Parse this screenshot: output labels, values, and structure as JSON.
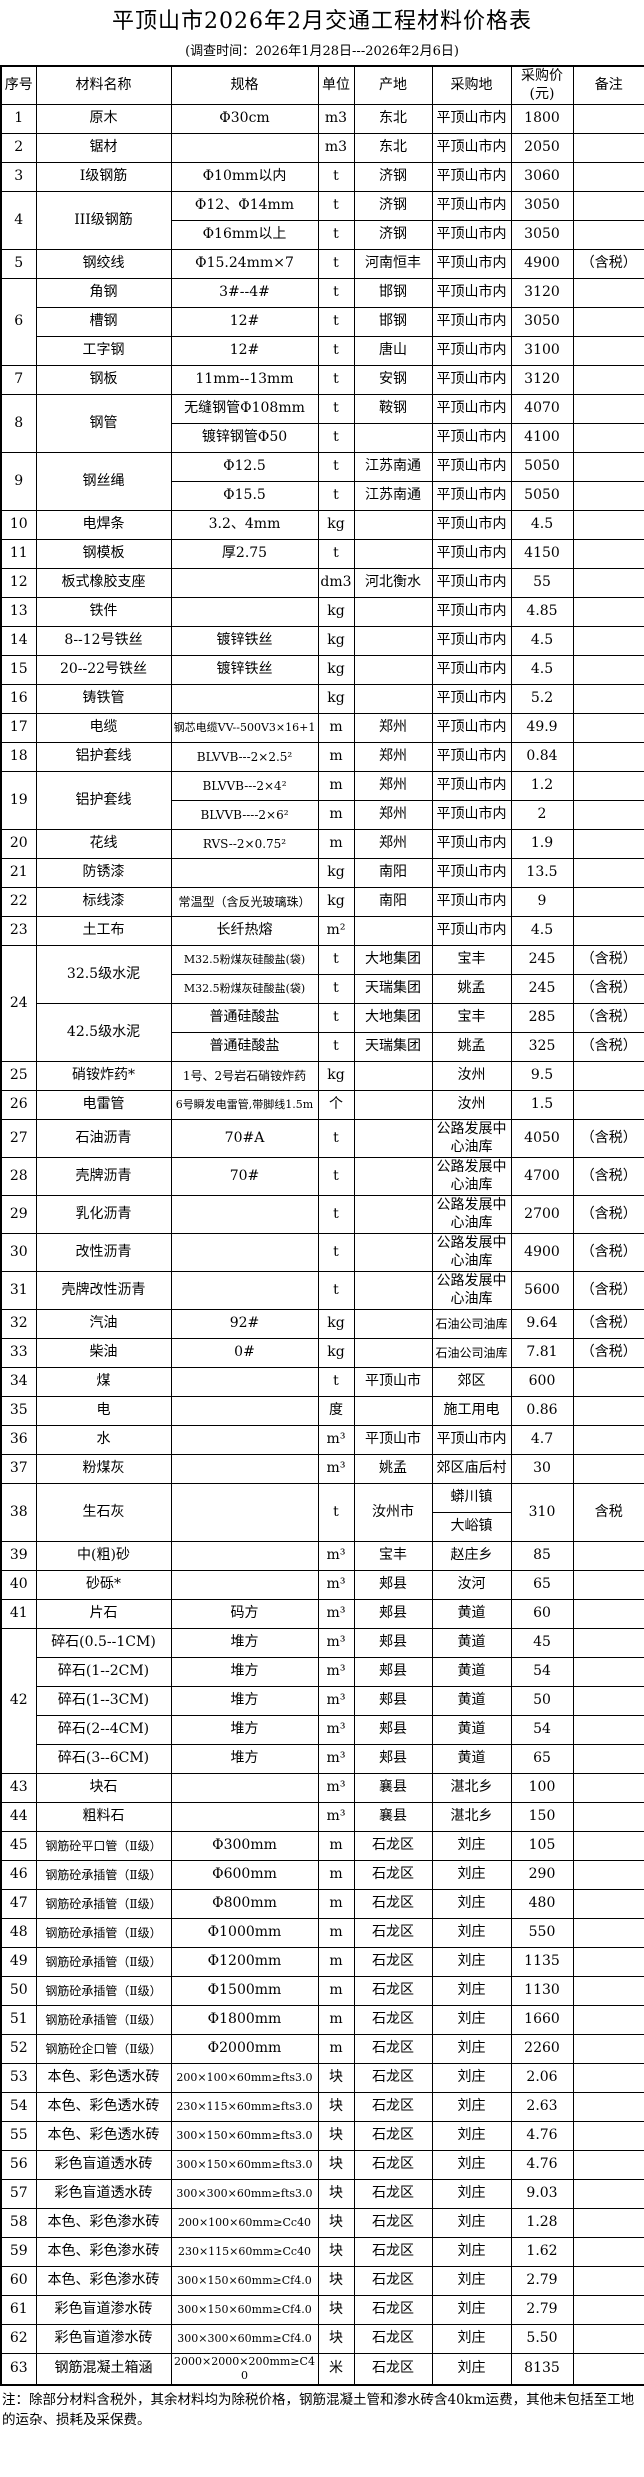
{
  "title": "平顶山市2026年2月交通工程材料价格表",
  "subtitle": "(调查时间：2026年1月28日---2026年2月6日)",
  "note": "注：除部分材料含税外，其余材料均为除税价格，钢筋混凝土管和渗水砖含40km运费，其他未包括至工地的运杂、损耗及采保费。",
  "table": {
    "columns": [
      "序号",
      "材料名称",
      "规格",
      "单位",
      "产地",
      "采购地",
      "采购价(元)",
      "备注"
    ],
    "rows": [
      [
        "1",
        "原木",
        "Φ30cm",
        "m3",
        "东北",
        "平顶山市内",
        "1800",
        ""
      ],
      [
        "2",
        "锯材",
        "",
        "m3",
        "东北",
        "平顶山市内",
        "2050",
        ""
      ],
      [
        "3",
        "I级钢筋",
        "Φ10mm以内",
        "t",
        "济钢",
        "平顶山市内",
        "3060",
        ""
      ],
      [
        {
          "t": "4",
          "rs": 2
        },
        {
          "t": "III级钢筋",
          "rs": 2
        },
        "Φ12、Φ14mm",
        "t",
        "济钢",
        "平顶山市内",
        "3050",
        ""
      ],
      [
        "Φ16mm以上",
        "t",
        "济钢",
        "平顶山市内",
        "3050",
        ""
      ],
      [
        "5",
        "钢绞线",
        "Φ15.24mm×7",
        "t",
        "河南恒丰",
        "平顶山市内",
        "4900",
        "（含税）"
      ],
      [
        {
          "t": "6",
          "rs": 3
        },
        "角钢",
        "3#--4#",
        "t",
        "邯钢",
        "平顶山市内",
        "3120",
        ""
      ],
      [
        "槽钢",
        "12#",
        "t",
        "邯钢",
        "平顶山市内",
        "3050",
        ""
      ],
      [
        "工字钢",
        "12#",
        "t",
        "唐山",
        "平顶山市内",
        "3100",
        ""
      ],
      [
        "7",
        "钢板",
        "11mm--13mm",
        "t",
        "安钢",
        "平顶山市内",
        "3120",
        ""
      ],
      [
        {
          "t": "8",
          "rs": 2
        },
        {
          "t": "钢管",
          "rs": 2
        },
        "无缝钢管Φ108mm",
        "t",
        "鞍钢",
        "平顶山市内",
        "4070",
        ""
      ],
      [
        "镀锌钢管Φ50",
        "t",
        "",
        "平顶山市内",
        "4100",
        ""
      ],
      [
        {
          "t": "9",
          "rs": 2
        },
        {
          "t": "钢丝绳",
          "rs": 2
        },
        "Φ12.5",
        "t",
        "江苏南通",
        "平顶山市内",
        "5050",
        ""
      ],
      [
        "Φ15.5",
        "t",
        "江苏南通",
        "平顶山市内",
        "5050",
        ""
      ],
      [
        "10",
        "电焊条",
        "3.2、4mm",
        "kg",
        "",
        "平顶山市内",
        "4.5",
        ""
      ],
      [
        "11",
        "钢模板",
        "厚2.75",
        "t",
        "",
        "平顶山市内",
        "4150",
        ""
      ],
      [
        "12",
        "板式橡胶支座",
        "",
        "dm3",
        "河北衡水",
        "平顶山市内",
        "55",
        ""
      ],
      [
        "13",
        "铁件",
        "",
        "kg",
        "",
        "平顶山市内",
        "4.85",
        ""
      ],
      [
        "14",
        "8--12号铁丝",
        "镀锌铁丝",
        "kg",
        "",
        "平顶山市内",
        "4.5",
        ""
      ],
      [
        "15",
        "20--22号铁丝",
        "镀锌铁丝",
        "kg",
        "",
        "平顶山市内",
        "4.5",
        ""
      ],
      [
        "16",
        "铸铁管",
        "",
        "kg",
        "",
        "平顶山市内",
        "5.2",
        ""
      ],
      [
        "17",
        "电缆",
        {
          "t": "钢芯电缆VV--500V3×16+1",
          "s": 1
        },
        "m",
        "郑州",
        "平顶山市内",
        "49.9",
        ""
      ],
      [
        "18",
        "铝护套线",
        {
          "t": "BLVVB---2×2.5²",
          "m": 1
        },
        "m",
        "郑州",
        "平顶山市内",
        "0.84",
        ""
      ],
      [
        {
          "t": "19",
          "rs": 2
        },
        {
          "t": "铝护套线",
          "rs": 2
        },
        {
          "t": "BLVVB---2×4²",
          "m": 1
        },
        "m",
        "郑州",
        "平顶山市内",
        "1.2",
        ""
      ],
      [
        {
          "t": "BLVVB----2×6²",
          "m": 1
        },
        "m",
        "郑州",
        "平顶山市内",
        "2",
        ""
      ],
      [
        "20",
        "花线",
        {
          "t": "RVS--2×0.75²",
          "m": 1
        },
        "m",
        "郑州",
        "平顶山市内",
        "1.9",
        ""
      ],
      [
        "21",
        "防锈漆",
        "",
        "kg",
        "南阳",
        "平顶山市内",
        "13.5",
        ""
      ],
      [
        "22",
        "标线漆",
        {
          "t": "常温型（含反光玻璃珠）",
          "m": 1
        },
        "kg",
        "南阳",
        "平顶山市内",
        "9",
        ""
      ],
      [
        "23",
        "土工布",
        "长纤热熔",
        "m²",
        "",
        "平顶山市内",
        "4.5",
        ""
      ],
      [
        {
          "t": "24",
          "rs": 4
        },
        {
          "t": "32.5级水泥",
          "rs": 2
        },
        {
          "t": "M32.5粉煤灰硅酸盐(袋)",
          "s": 1
        },
        "t",
        "大地集团",
        "宝丰",
        "245",
        "（含税）"
      ],
      [
        {
          "t": "M32.5粉煤灰硅酸盐(袋)",
          "s": 1
        },
        "t",
        "天瑞集团",
        "姚孟",
        "245",
        "（含税）"
      ],
      [
        {
          "t": "42.5级水泥",
          "rs": 2
        },
        "普通硅酸盐",
        "t",
        "大地集团",
        "宝丰",
        "285",
        "（含税）"
      ],
      [
        "普通硅酸盐",
        "t",
        "天瑞集团",
        "姚孟",
        "325",
        "（含税）"
      ],
      [
        "25",
        "硝铵炸药*",
        {
          "t": "1号、2号岩石硝铵炸药",
          "m": 1
        },
        "kg",
        "",
        "汝州",
        "9.5",
        ""
      ],
      [
        "26",
        "电雷管",
        {
          "t": "6号瞬发电雷管,带脚线1.5m",
          "s": 1
        },
        "个",
        "",
        "汝州",
        "1.5",
        ""
      ],
      [
        "27",
        "石油沥青",
        "70#A",
        "t",
        "",
        "公路发展中心油库",
        "4050",
        "（含税）"
      ],
      [
        "28",
        "壳牌沥青",
        "70#",
        "t",
        "",
        "公路发展中心油库",
        "4700",
        "（含税）"
      ],
      [
        "29",
        "乳化沥青",
        "",
        "t",
        "",
        "公路发展中心油库",
        "2700",
        "（含税）"
      ],
      [
        "30",
        "改性沥青",
        "",
        "t",
        "",
        "公路发展中心油库",
        "4900",
        "（含税）"
      ],
      [
        "31",
        "壳牌改性沥青",
        "",
        "t",
        "",
        "公路发展中心油库",
        "5600",
        "（含税）"
      ],
      [
        "32",
        "汽油",
        "92#",
        "kg",
        "",
        {
          "t": "石油公司油库",
          "m": 1
        },
        "9.64",
        "（含税）"
      ],
      [
        "33",
        "柴油",
        "0#",
        "kg",
        "",
        {
          "t": "石油公司油库",
          "m": 1
        },
        "7.81",
        "（含税）"
      ],
      [
        "34",
        "煤",
        "",
        "t",
        "平顶山市",
        "郊区",
        "600",
        ""
      ],
      [
        "35",
        "电",
        "",
        "度",
        "",
        "施工用电",
        "0.86",
        ""
      ],
      [
        "36",
        "水",
        "",
        "m³",
        "平顶山市",
        "平顶山市内",
        "4.7",
        ""
      ],
      [
        "37",
        "粉煤灰",
        "",
        "m³",
        "姚孟",
        "郊区庙后村",
        "30",
        ""
      ],
      [
        {
          "t": "38",
          "rs": 2
        },
        {
          "t": "生石灰",
          "rs": 2
        },
        {
          "t": "",
          "rs": 2
        },
        {
          "t": "t",
          "rs": 2
        },
        {
          "t": "汝州市",
          "rs": 2
        },
        "蟒川镇",
        {
          "t": "310",
          "rs": 2
        },
        {
          "t": "含税",
          "rs": 2
        }
      ],
      [
        "大峪镇"
      ],
      [
        "39",
        "中(粗)砂",
        "",
        "m³",
        "宝丰",
        "赵庄乡",
        "85",
        ""
      ],
      [
        "40",
        "砂砾*",
        "",
        "m³",
        "郏县",
        "汝河",
        "65",
        ""
      ],
      [
        "41",
        "片石",
        "码方",
        "m³",
        "郏县",
        "黄道",
        "60",
        ""
      ],
      [
        {
          "t": "42",
          "rs": 5
        },
        "碎石(0.5--1CM)",
        "堆方",
        "m³",
        "郏县",
        "黄道",
        "45",
        ""
      ],
      [
        "碎石(1--2CM)",
        "堆方",
        "m³",
        "郏县",
        "黄道",
        "54",
        ""
      ],
      [
        "碎石(1--3CM)",
        "堆方",
        "m³",
        "郏县",
        "黄道",
        "50",
        ""
      ],
      [
        "碎石(2--4CM)",
        "堆方",
        "m³",
        "郏县",
        "黄道",
        "54",
        ""
      ],
      [
        "碎石(3--6CM)",
        "堆方",
        "m³",
        "郏县",
        "黄道",
        "65",
        ""
      ],
      [
        "43",
        "块石",
        "",
        "m³",
        "襄县",
        "湛北乡",
        "100",
        ""
      ],
      [
        "44",
        "粗料石",
        "",
        "m³",
        "襄县",
        "湛北乡",
        "150",
        ""
      ],
      [
        "45",
        {
          "t": "钢筋砼平口管（Ⅱ级）",
          "m": 1
        },
        "Φ300mm",
        "m",
        "石龙区",
        "刘庄",
        "105",
        ""
      ],
      [
        "46",
        {
          "t": "钢筋砼承插管（Ⅱ级）",
          "m": 1
        },
        "Φ600mm",
        "m",
        "石龙区",
        "刘庄",
        "290",
        ""
      ],
      [
        "47",
        {
          "t": "钢筋砼承插管（Ⅱ级）",
          "m": 1
        },
        "Φ800mm",
        "m",
        "石龙区",
        "刘庄",
        "480",
        ""
      ],
      [
        "48",
        {
          "t": "钢筋砼承插管（Ⅱ级）",
          "m": 1
        },
        "Φ1000mm",
        "m",
        "石龙区",
        "刘庄",
        "550",
        ""
      ],
      [
        "49",
        {
          "t": "钢筋砼承插管（Ⅱ级）",
          "m": 1
        },
        "Φ1200mm",
        "m",
        "石龙区",
        "刘庄",
        "1135",
        ""
      ],
      [
        "50",
        {
          "t": "钢筋砼承插管（Ⅱ级）",
          "m": 1
        },
        "Φ1500mm",
        "m",
        "石龙区",
        "刘庄",
        "1130",
        ""
      ],
      [
        "51",
        {
          "t": "钢筋砼承插管（Ⅱ级）",
          "m": 1
        },
        "Φ1800mm",
        "m",
        "石龙区",
        "刘庄",
        "1660",
        ""
      ],
      [
        "52",
        {
          "t": "钢筋砼企口管（Ⅱ级）",
          "m": 1
        },
        "Φ2000mm",
        "m",
        "石龙区",
        "刘庄",
        "2260",
        ""
      ],
      [
        "53",
        "本色、彩色透水砖",
        {
          "t": "200×100×60mm≥fts3.0",
          "s": 1
        },
        "块",
        "石龙区",
        "刘庄",
        "2.06",
        ""
      ],
      [
        "54",
        "本色、彩色透水砖",
        {
          "t": "230×115×60mm≥fts3.0",
          "s": 1
        },
        "块",
        "石龙区",
        "刘庄",
        "2.63",
        ""
      ],
      [
        "55",
        "本色、彩色透水砖",
        {
          "t": "300×150×60mm≥fts3.0",
          "s": 1
        },
        "块",
        "石龙区",
        "刘庄",
        "4.76",
        ""
      ],
      [
        "56",
        "彩色盲道透水砖",
        {
          "t": "300×150×60mm≥fts3.0",
          "s": 1
        },
        "块",
        "石龙区",
        "刘庄",
        "4.76",
        ""
      ],
      [
        "57",
        "彩色盲道透水砖",
        {
          "t": "300×300×60mm≥fts3.0",
          "s": 1
        },
        "块",
        "石龙区",
        "刘庄",
        "9.03",
        ""
      ],
      [
        "58",
        "本色、彩色渗水砖",
        {
          "t": "200×100×60mm≥Cc40",
          "s": 1
        },
        "块",
        "石龙区",
        "刘庄",
        "1.28",
        ""
      ],
      [
        "59",
        "本色、彩色渗水砖",
        {
          "t": "230×115×60mm≥Cc40",
          "s": 1
        },
        "块",
        "石龙区",
        "刘庄",
        "1.62",
        ""
      ],
      [
        "60",
        "本色、彩色渗水砖",
        {
          "t": "300×150×60mm≥Cf4.0",
          "s": 1
        },
        "块",
        "石龙区",
        "刘庄",
        "2.79",
        ""
      ],
      [
        "61",
        "彩色盲道渗水砖",
        {
          "t": "300×150×60mm≥Cf4.0",
          "s": 1
        },
        "块",
        "石龙区",
        "刘庄",
        "2.79",
        ""
      ],
      [
        "62",
        "彩色盲道渗水砖",
        {
          "t": "300×300×60mm≥Cf4.0",
          "s": 1
        },
        "块",
        "石龙区",
        "刘庄",
        "5.50",
        ""
      ],
      [
        "63",
        "钢筋混凝土箱涵",
        {
          "t": "2000×2000×200mm≥C40",
          "s": 1
        },
        "米",
        "石龙区",
        "刘庄",
        "8135",
        ""
      ]
    ]
  }
}
